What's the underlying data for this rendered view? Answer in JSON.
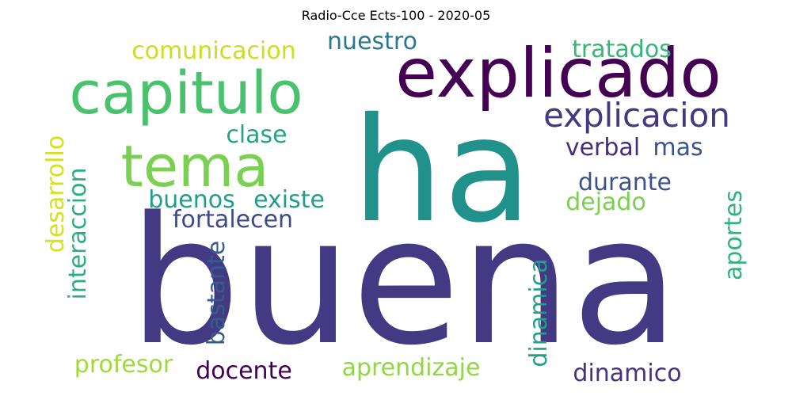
{
  "title": "Radio-Cce  Ects-100 - 2020-05",
  "words": [
    {
      "text": "buena",
      "color": "#443983"
    },
    {
      "text": "ha",
      "color": "#21918c"
    },
    {
      "text": "explicado",
      "color": "#440154"
    },
    {
      "text": "capitulo",
      "color": "#4ac16d"
    },
    {
      "text": "tema",
      "color": "#7ad151"
    },
    {
      "text": "explicacion",
      "color": "#453781"
    },
    {
      "text": "comunicacion",
      "color": "#c8e020"
    },
    {
      "text": "nuestro",
      "color": "#2a788e"
    },
    {
      "text": "tratados",
      "color": "#35b779"
    },
    {
      "text": "clase",
      "color": "#21a685"
    },
    {
      "text": "verbal",
      "color": "#472d7b"
    },
    {
      "text": "mas",
      "color": "#39568c"
    },
    {
      "text": "durante",
      "color": "#3b528b"
    },
    {
      "text": "dejado",
      "color": "#7ad151"
    },
    {
      "text": "buenos",
      "color": "#1f9e89"
    },
    {
      "text": "existe",
      "color": "#1f9e89"
    },
    {
      "text": "fortalecen",
      "color": "#3e4a89"
    },
    {
      "text": "desarrollo",
      "color": "#d2e21b"
    },
    {
      "text": "interaccion",
      "color": "#2ab07f"
    },
    {
      "text": "bastante",
      "color": "#365c8d"
    },
    {
      "text": "dinamica",
      "color": "#1fa088"
    },
    {
      "text": "aportes",
      "color": "#2fb47c"
    },
    {
      "text": "profesor",
      "color": "#a0da39"
    },
    {
      "text": "docente",
      "color": "#440154"
    },
    {
      "text": "aprendizaje",
      "color": "#8fd744"
    },
    {
      "text": "dinamico",
      "color": "#46327e"
    }
  ]
}
